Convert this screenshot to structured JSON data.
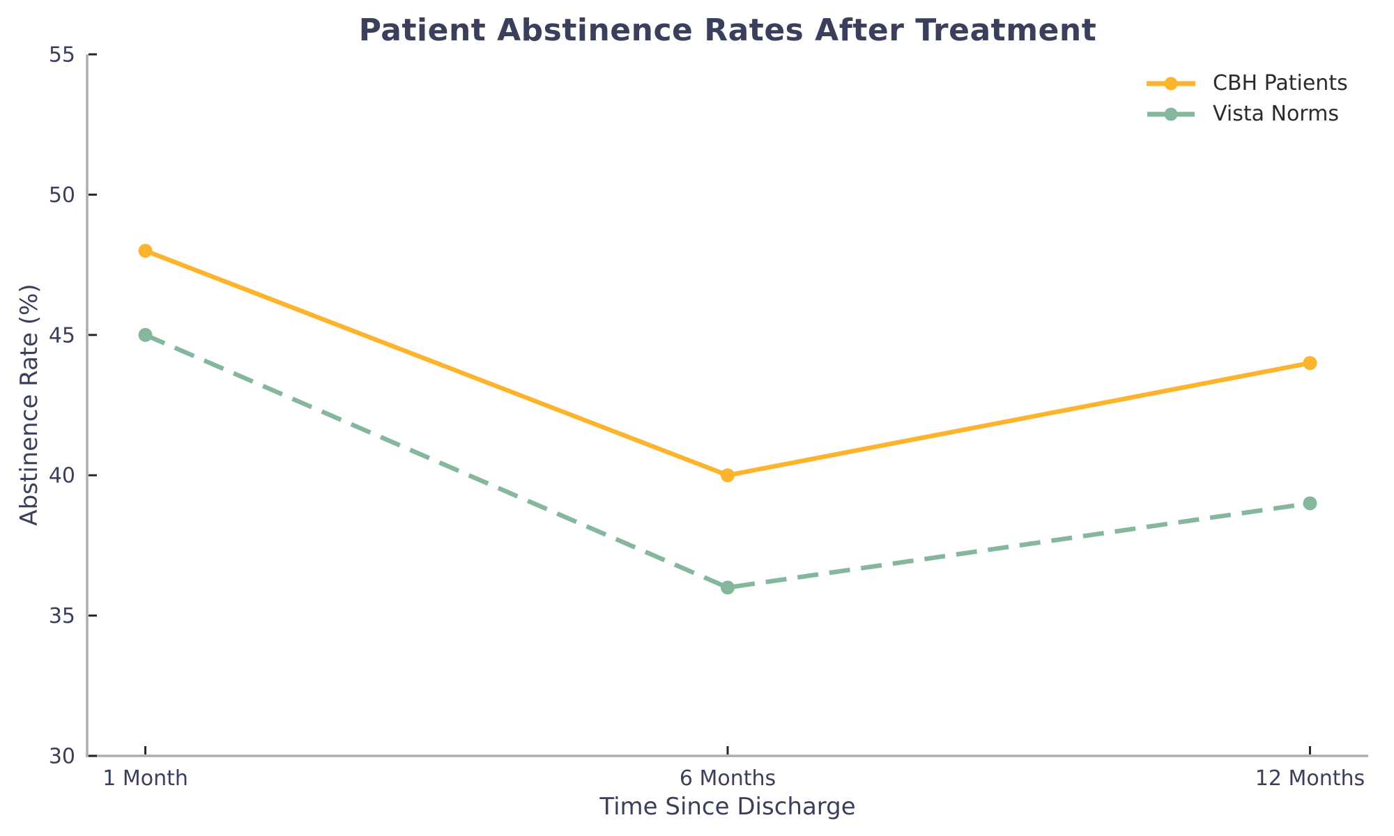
{
  "title": "Patient Abstinence Rates After Treatment",
  "chart_data": {
    "type": "line",
    "categories": [
      "1 Month",
      "6 Months",
      "12 Months"
    ],
    "series": [
      {
        "name": "CBH Patients",
        "values": [
          48,
          40,
          44
        ],
        "color": "#FDB32B",
        "style": "solid"
      },
      {
        "name": "Vista Norms",
        "values": [
          45,
          36,
          39
        ],
        "color": "#85B79D",
        "style": "dashed"
      }
    ],
    "xlabel": "Time Since Discharge",
    "ylabel": "Abstinence Rate (%)",
    "ylim": [
      30,
      55
    ],
    "yticks": [
      30,
      35,
      40,
      45,
      50,
      55
    ],
    "grid": false,
    "legend_position": "upper right",
    "markers": "circle"
  },
  "colors": {
    "title_text": "#3A3F5C",
    "axis_text": "#3A3F5C",
    "legend_text": "#2B2B2B",
    "spine": "#ADADAD",
    "tick_mark": "#262626",
    "background": "#FFFFFF"
  }
}
